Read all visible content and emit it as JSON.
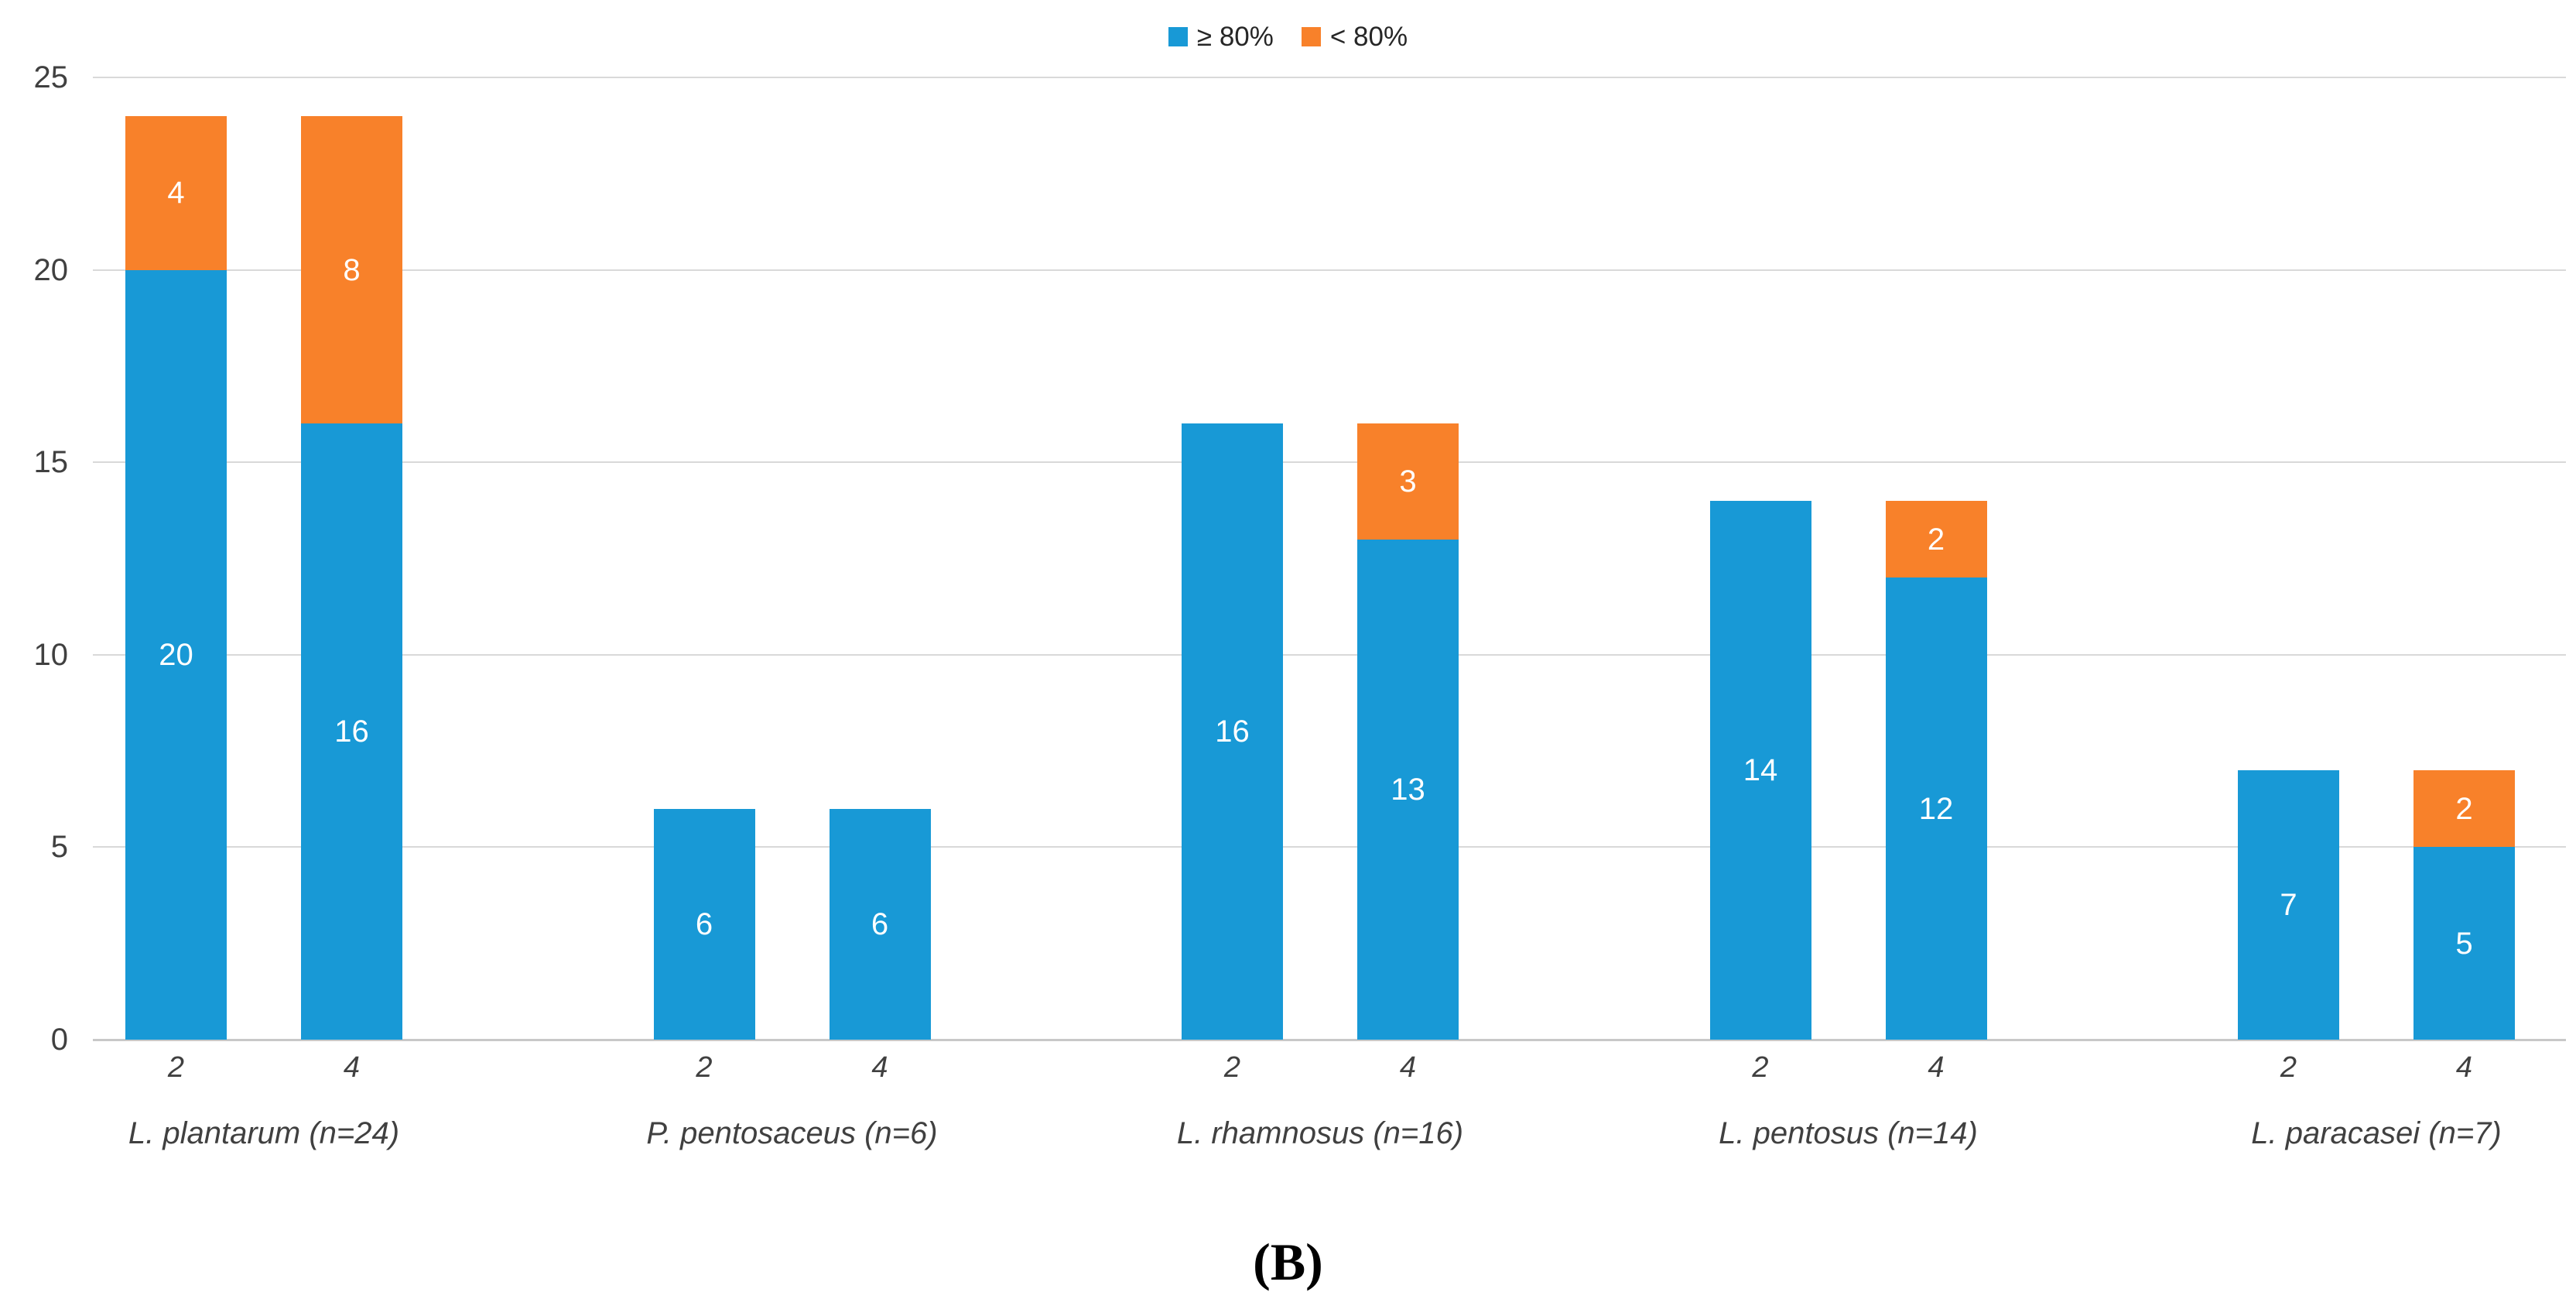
{
  "figure_label": "(B)",
  "legend": {
    "items": [
      {
        "label": "≥ 80%",
        "color": "#1899D6"
      },
      {
        "label": "< 80%",
        "color": "#F8812A"
      }
    ]
  },
  "chart_data": {
    "type": "bar",
    "stacked": true,
    "title": "",
    "xlabel": "",
    "ylabel": "",
    "ylim": [
      0,
      25
    ],
    "yticks": [
      0,
      5,
      10,
      15,
      20,
      25
    ],
    "grid": true,
    "legend_position": "top-center",
    "series": [
      {
        "name": "≥ 80%",
        "color": "#1899D6"
      },
      {
        "name": "< 80%",
        "color": "#F8812A"
      }
    ],
    "groups": [
      {
        "label": "L. plantarum (n=24)",
        "bars": [
          {
            "tick": "2",
            "values": [
              20,
              4
            ]
          },
          {
            "tick": "4",
            "values": [
              16,
              8
            ]
          }
        ]
      },
      {
        "label": "P. pentosaceus (n=6)",
        "bars": [
          {
            "tick": "2",
            "values": [
              6,
              0
            ]
          },
          {
            "tick": "4",
            "values": [
              6,
              0
            ]
          }
        ]
      },
      {
        "label": "L. rhamnosus (n=16)",
        "bars": [
          {
            "tick": "2",
            "values": [
              16,
              0
            ]
          },
          {
            "tick": "4",
            "values": [
              13,
              3
            ]
          }
        ]
      },
      {
        "label": "L. pentosus (n=14)",
        "bars": [
          {
            "tick": "2",
            "values": [
              14,
              0
            ]
          },
          {
            "tick": "4",
            "values": [
              12,
              2
            ]
          }
        ]
      },
      {
        "label": "L. paracasei (n=7)",
        "bars": [
          {
            "tick": "2",
            "values": [
              7,
              0
            ]
          },
          {
            "tick": "4",
            "values": [
              5,
              2
            ]
          }
        ]
      }
    ]
  }
}
